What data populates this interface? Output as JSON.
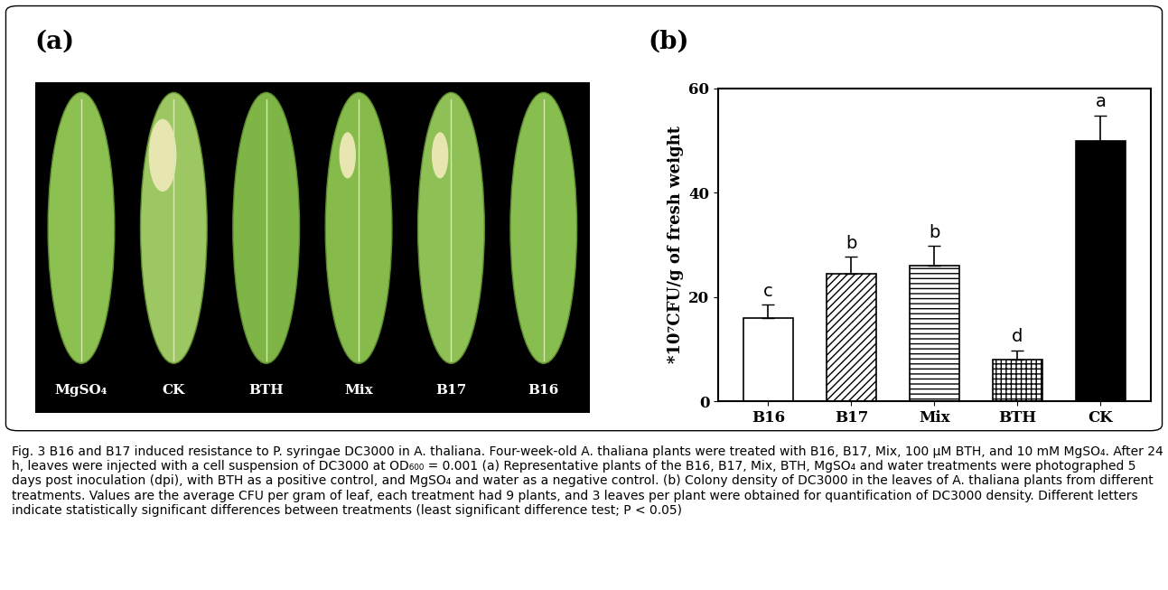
{
  "panel_a": {
    "label": "(a)",
    "leaf_labels": [
      "MgSO₄",
      "CK",
      "BTH",
      "Mix",
      "B17",
      "B16"
    ]
  },
  "chart_data": {
    "type": "bar",
    "title": "(b)",
    "categories": [
      "B16",
      "B17",
      "Mix",
      "BTH",
      "CK"
    ],
    "values": [
      16,
      24.5,
      26,
      8,
      50
    ],
    "errors": [
      2.5,
      3.2,
      3.8,
      1.8,
      4.8
    ],
    "letters": [
      "c",
      "b",
      "b",
      "d",
      "a"
    ],
    "colors": [
      "white",
      "white",
      "white",
      "white",
      "black"
    ],
    "y_label": "*10⁷CFU/g of fresh weight",
    "ylim": [
      0,
      60
    ],
    "yticks": [
      0,
      20,
      40,
      60
    ],
    "grid": false
  },
  "caption": "Fig. 3 B16 and B17 induced resistance to P. syringae DC3000 in A. thaliana. Four-week-old A. thaliana plants were treated with B16, B17, Mix, 100 μM BTH, and 10 mM MgSO₄. After 24 h, leaves were injected with a cell suspension of DC3000 at OD₆₀₀ = 0.001 (a) Representative plants of the B16, B17, Mix, BTH, MgSO₄ and water treatments were photographed 5 days post inoculation (dpi), with BTH as a positive control, and MgSO₄ and water as a negative control. (b) Colony density of DC3000 in the leaves of A. thaliana plants from different treatments. Values are the average CFU per gram of leaf, each treatment had 9 plants, and 3 leaves per plant were obtained for quantification of DC3000 density. Different letters indicate statistically significant differences between treatments (least significant difference test; P < 0.05)"
}
